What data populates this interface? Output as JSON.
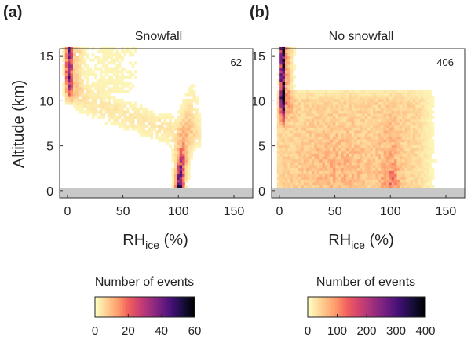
{
  "chart_data": [
    {
      "type": "heatmap",
      "panel_label": "(a)",
      "title": "Snowfall",
      "count_label": "62",
      "xlabel_main": "RH",
      "xlabel_sub": "ice",
      "xlabel_unit": " (%)",
      "ylabel": "Altitude (km)",
      "xlim": [
        -7,
        167
      ],
      "ylim": [
        -0.8,
        15.8
      ],
      "xticks": [
        0,
        50,
        100,
        150
      ],
      "yticks": [
        0,
        5,
        10,
        15
      ],
      "surface_band_altitude_km": [
        -0.8,
        0.3
      ],
      "features": [
        {
          "name": "upper-troposphere low RHice branch",
          "rh_range": [
            0,
            10
          ],
          "altitude_range_km": [
            10,
            15.8
          ],
          "peak_events": 35
        },
        {
          "name": "mid-level transition arc",
          "rh_range": [
            10,
            95
          ],
          "altitude_range_km": [
            5,
            12
          ],
          "peak_events": 5
        },
        {
          "name": "near-saturation column",
          "rh_range": [
            90,
            112
          ],
          "altitude_range_km": [
            0.3,
            11
          ],
          "peak_events": 60
        }
      ],
      "colorbar": {
        "label": "Number of events",
        "min": 0,
        "max": 60,
        "ticks": [
          0,
          20,
          40,
          60
        ]
      }
    },
    {
      "type": "heatmap",
      "panel_label": "(b)",
      "title": "No snowfall",
      "count_label": "406",
      "xlabel_main": "RH",
      "xlabel_sub": "ice",
      "xlabel_unit": " (%)",
      "ylabel": "",
      "xlim": [
        -7,
        167
      ],
      "ylim": [
        -0.8,
        15.8
      ],
      "xticks": [
        0,
        50,
        100,
        150
      ],
      "yticks": [
        0,
        5,
        10,
        15
      ],
      "surface_band_altitude_km": [
        -0.8,
        0.3
      ],
      "features": [
        {
          "name": "upper-troposphere low RHice branch",
          "rh_range": [
            0,
            8
          ],
          "altitude_range_km": [
            8,
            15.8
          ],
          "peak_events": 400
        },
        {
          "name": "broad diffuse background",
          "rh_range": [
            0,
            140
          ],
          "altitude_range_km": [
            0.3,
            11
          ],
          "peak_events": 60
        },
        {
          "name": "near-saturation enhancement",
          "rh_range": [
            90,
            110
          ],
          "altitude_range_km": [
            0.3,
            4
          ],
          "peak_events": 150
        }
      ],
      "colorbar": {
        "label": "Number of events",
        "min": 0,
        "max": 400,
        "ticks": [
          0,
          100,
          200,
          300,
          400
        ]
      }
    }
  ],
  "colors": {
    "colormap": [
      "#fcfdbf",
      "#fecf92",
      "#fe9f6d",
      "#f1605d",
      "#cd4071",
      "#9e2f7f",
      "#721f81",
      "#440f76",
      "#180f3d",
      "#000004"
    ],
    "surface_band": "#c8c8c8",
    "axis": "#333333"
  }
}
